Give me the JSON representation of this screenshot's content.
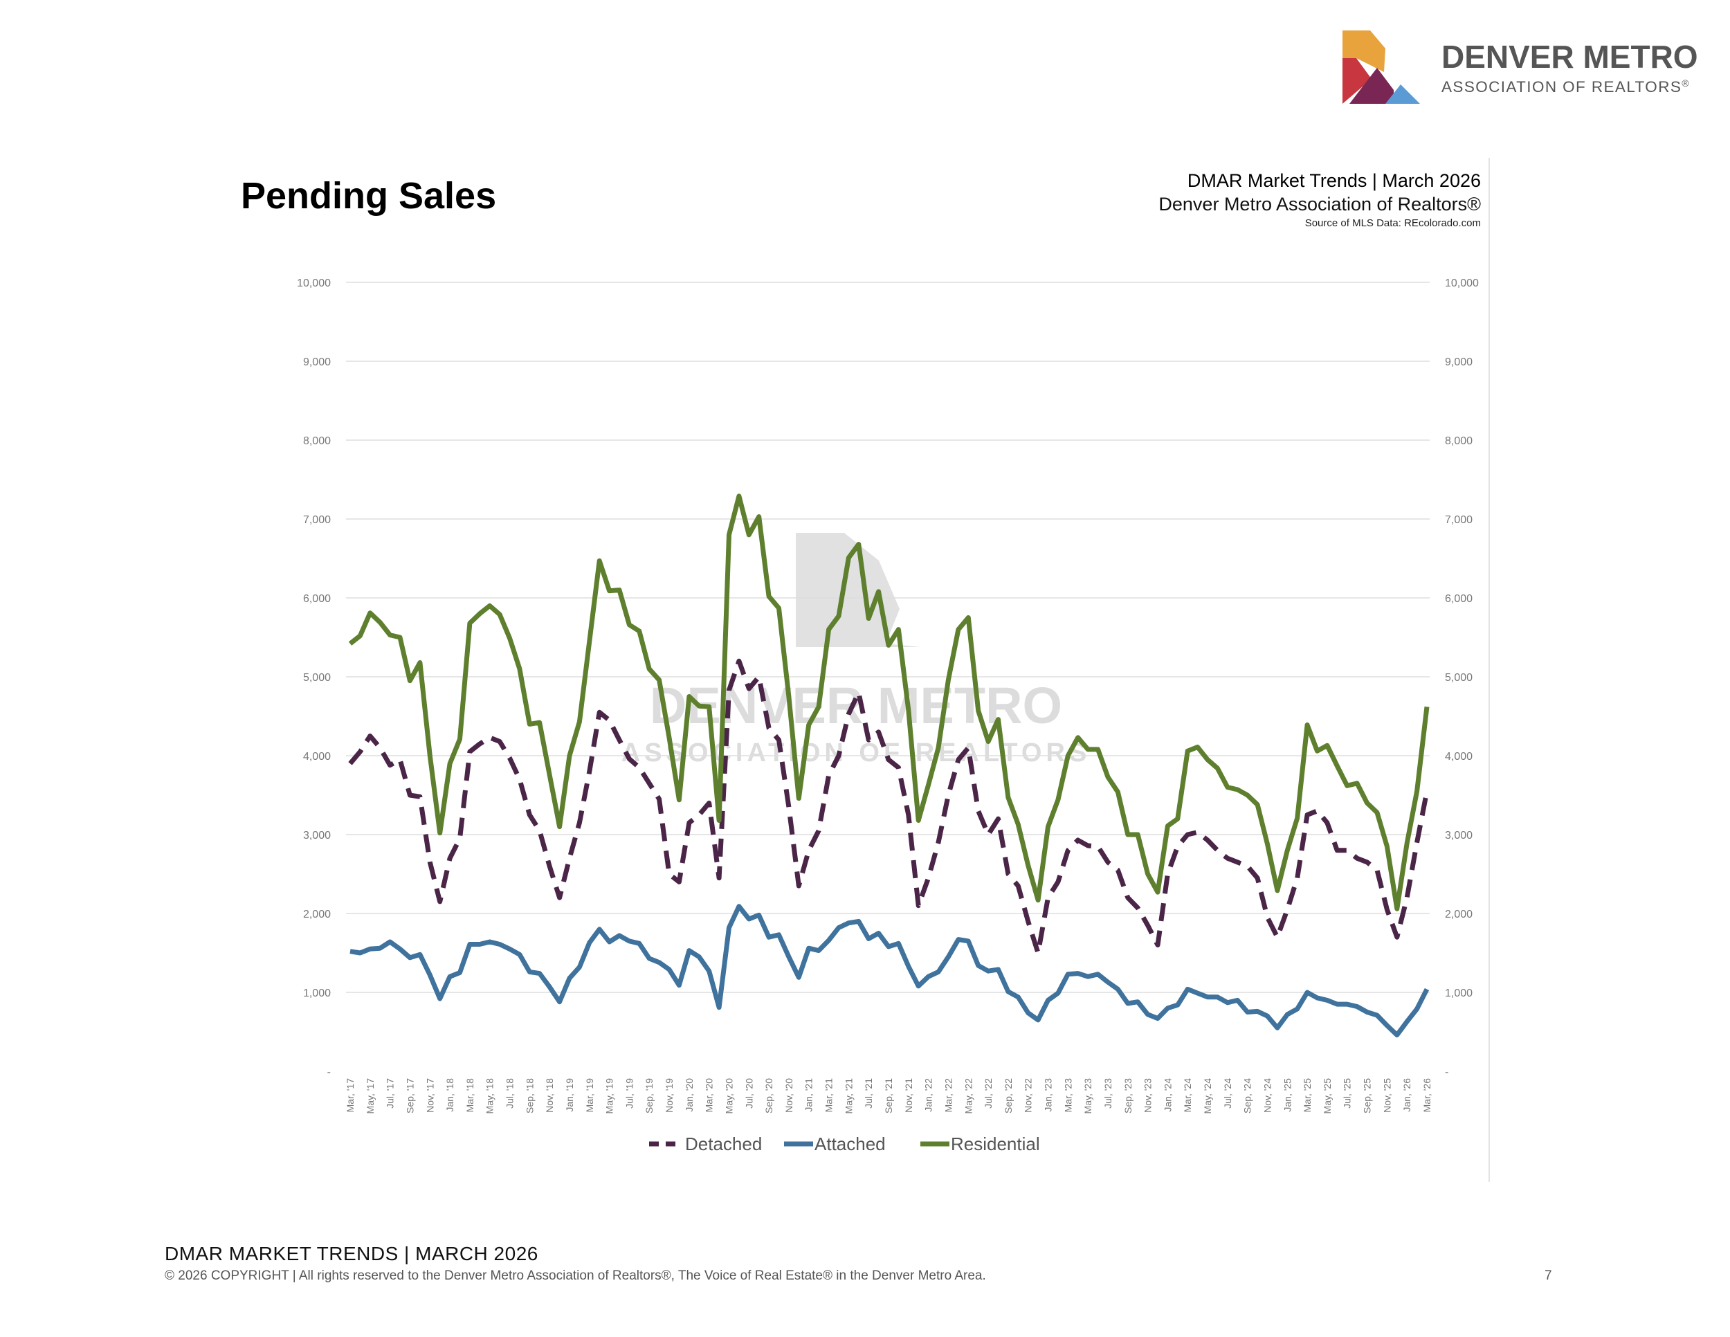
{
  "logo": {
    "line1": "DENVER METRO",
    "line2": "ASSOCIATION OF REALTORS",
    "reg": "®",
    "colors": [
      "#e8a33d",
      "#c8363f",
      "#7a2655",
      "#5b9bd5"
    ]
  },
  "page_title": "Pending Sales",
  "header": {
    "line1": "DMAR Market Trends | March 2026",
    "line2": "Denver Metro Association of Realtors®",
    "line3": "Source of MLS Data: REcolorado.com"
  },
  "footer": {
    "line1": "DMAR MARKET TRENDS | MARCH 2026",
    "line2": "© 2026 COPYRIGHT | All rights reserved to the Denver Metro Association of Realtors®, The Voice of Real Estate® in the Denver Metro Area.",
    "page_number": "7"
  },
  "chart_data": {
    "type": "line",
    "title": "Pending Sales",
    "ylim": [
      0,
      10000
    ],
    "ytick_values": [
      0,
      1000,
      2000,
      3000,
      4000,
      5000,
      6000,
      7000,
      8000,
      9000,
      10000
    ],
    "ytick_labels": [
      "-",
      "1,000",
      "2,000",
      "3,000",
      "4,000",
      "5,000",
      "6,000",
      "7,000",
      "8,000",
      "9,000",
      "10,000"
    ],
    "grid": true,
    "legend_position": "bottom-center",
    "watermark": {
      "line1": "DENVER METRO",
      "line2": "ASSOCIATION OF REALTORS"
    },
    "start_month": "Mar 2017",
    "x_count": 109,
    "xtick_labels": [
      "Mar, '17",
      "May, '17",
      "Jul, '17",
      "Sep, '17",
      "Nov, '17",
      "Jan, '18",
      "Mar, '18",
      "May, '18",
      "Jul, '18",
      "Sep, '18",
      "Nov, '18",
      "Jan, '19",
      "Mar, '19",
      "May, '19",
      "Jul, '19",
      "Sep, '19",
      "Nov, '19",
      "Jan, '20",
      "Mar, '20",
      "May, '20",
      "Jul, '20",
      "Sep, '20",
      "Nov, '20",
      "Jan, '21",
      "Mar, '21",
      "May, '21",
      "Jul, '21",
      "Sep, '21",
      "Nov, '21",
      "Jan, '22",
      "Mar, '22",
      "May, '22",
      "Jul, '22",
      "Sep, '22",
      "Nov, '22",
      "Jan, '23",
      "Mar, '23",
      "May, '23",
      "Jul, '23",
      "Sep, '23",
      "Nov, '23",
      "Jan, '24",
      "Mar, '24",
      "May, '24",
      "Jul, '24",
      "Sep, '24",
      "Nov, '24",
      "Jan, '25",
      "Mar, '25",
      "May, '25",
      "Jul, '25",
      "Sep, '25",
      "Nov, '25",
      "Jan, '26",
      "Mar, '26"
    ],
    "series": [
      {
        "name": "Detached",
        "color": "#4a2547",
        "dashed": true,
        "values": [
          3900,
          4050,
          4250,
          4100,
          3880,
          3950,
          3500,
          3480,
          2650,
          2150,
          2700,
          2950,
          4050,
          4150,
          4230,
          4180,
          3970,
          3700,
          3250,
          3050,
          2600,
          2200,
          2700,
          3150,
          3800,
          4550,
          4450,
          4200,
          3960,
          3850,
          3650,
          3450,
          2500,
          2400,
          3150,
          3250,
          3400,
          2450,
          4830,
          5200,
          4850,
          5000,
          4350,
          4200,
          3350,
          2350,
          2800,
          3050,
          3750,
          4000,
          4530,
          4800,
          4200,
          4300,
          3950,
          3850,
          3250,
          2100,
          2450,
          2900,
          3500,
          3950,
          4100,
          3300,
          3000,
          3200,
          2500,
          2350,
          1900,
          1500,
          2200,
          2400,
          2800,
          2930,
          2860,
          2850,
          2650,
          2550,
          2200,
          2070,
          1850,
          1600,
          2500,
          2850,
          3000,
          3030,
          2930,
          2800,
          2700,
          2650,
          2600,
          2450,
          1950,
          1700,
          2050,
          2450,
          3250,
          3300,
          3150,
          2800,
          2800,
          2700,
          2650,
          2550,
          2050,
          1700,
          2200,
          2900,
          3550
        ]
      },
      {
        "name": "Attached",
        "color": "#3f729c",
        "dashed": false,
        "values": [
          1520,
          1500,
          1550,
          1560,
          1640,
          1550,
          1440,
          1480,
          1220,
          920,
          1200,
          1250,
          1610,
          1610,
          1640,
          1610,
          1550,
          1480,
          1260,
          1240,
          1070,
          880,
          1180,
          1320,
          1630,
          1800,
          1640,
          1720,
          1650,
          1620,
          1430,
          1380,
          1290,
          1090,
          1530,
          1450,
          1270,
          810,
          1820,
          2090,
          1930,
          1980,
          1700,
          1730,
          1450,
          1190,
          1560,
          1530,
          1660,
          1820,
          1880,
          1900,
          1680,
          1750,
          1580,
          1620,
          1330,
          1080,
          1200,
          1260,
          1450,
          1670,
          1650,
          1340,
          1270,
          1290,
          1010,
          940,
          740,
          650,
          900,
          990,
          1230,
          1240,
          1200,
          1230,
          1130,
          1040,
          860,
          880,
          720,
          670,
          800,
          840,
          1040,
          990,
          940,
          940,
          870,
          900,
          750,
          760,
          700,
          550,
          720,
          790,
          1000,
          930,
          900,
          850,
          850,
          820,
          750,
          710,
          580,
          460,
          630,
          790,
          1040
        ]
      },
      {
        "name": "Residential",
        "color": "#5e7f2d",
        "dashed": false,
        "values": [
          5420,
          5520,
          5810,
          5690,
          5530,
          5500,
          4950,
          5180,
          4000,
          3020,
          3900,
          4210,
          5680,
          5800,
          5900,
          5790,
          5490,
          5100,
          4400,
          4420,
          3760,
          3100,
          4000,
          4430,
          5450,
          6470,
          6090,
          6100,
          5660,
          5580,
          5100,
          4960,
          4230,
          3440,
          4750,
          4630,
          4620,
          3180,
          6800,
          7290,
          6800,
          7030,
          6020,
          5870,
          4750,
          3460,
          4390,
          4620,
          5600,
          5770,
          6510,
          6680,
          5740,
          6080,
          5400,
          5600,
          4580,
          3180,
          3630,
          4100,
          4960,
          5600,
          5750,
          4570,
          4180,
          4460,
          3470,
          3130,
          2610,
          2170,
          3100,
          3440,
          4000,
          4230,
          4080,
          4080,
          3730,
          3540,
          3000,
          3000,
          2500,
          2270,
          3110,
          3200,
          4060,
          4110,
          3950,
          3840,
          3600,
          3570,
          3500,
          3380,
          2880,
          2290,
          2800,
          3210,
          4390,
          4060,
          4130,
          3870,
          3620,
          3650,
          3400,
          3280,
          2850,
          2060,
          2890,
          3550,
          4620
        ]
      }
    ]
  }
}
